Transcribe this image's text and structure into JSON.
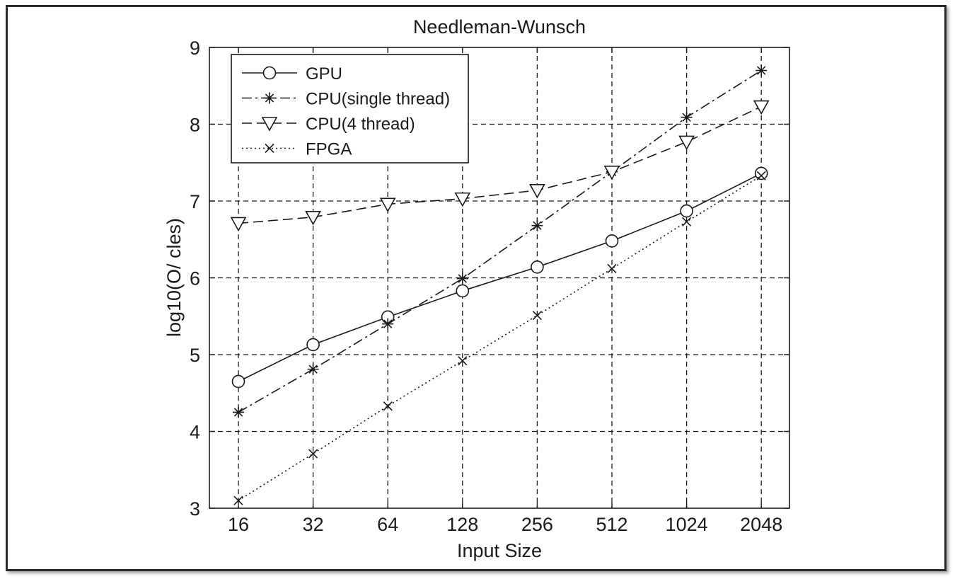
{
  "chart_data": {
    "type": "line",
    "title": "Needleman-Wunsch",
    "xlabel": "Input Size",
    "ylabel": "log10(O/ cles)",
    "categories": [
      "16",
      "32",
      "64",
      "128",
      "256",
      "512",
      "1024",
      "2048"
    ],
    "ylim": [
      3,
      9
    ],
    "yticks": [
      3,
      4,
      5,
      6,
      7,
      8,
      9
    ],
    "grid": true,
    "legend_position": "top-left",
    "series": [
      {
        "name": "GPU",
        "marker": "circle",
        "line_style": "solid",
        "values": [
          4.65,
          5.13,
          5.49,
          5.83,
          6.14,
          6.48,
          6.87,
          7.36
        ]
      },
      {
        "name": "CPU(single thread)",
        "marker": "asterisk",
        "line_style": "dash-dot",
        "values": [
          4.25,
          4.81,
          5.4,
          5.99,
          6.68,
          7.38,
          8.09,
          8.7
        ]
      },
      {
        "name": "CPU(4 thread)",
        "marker": "triangle-down",
        "line_style": "dashed",
        "values": [
          6.71,
          6.79,
          6.96,
          7.03,
          7.14,
          7.38,
          7.77,
          8.23
        ]
      },
      {
        "name": "FPGA",
        "marker": "x",
        "line_style": "dotted",
        "values": [
          3.1,
          3.71,
          4.33,
          4.92,
          5.51,
          6.12,
          6.73,
          7.33
        ]
      }
    ]
  }
}
